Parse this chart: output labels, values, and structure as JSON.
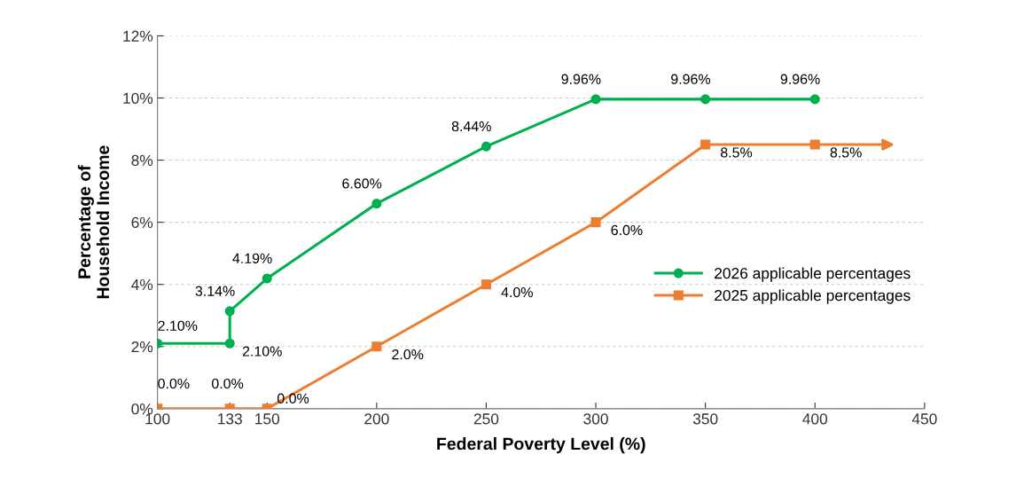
{
  "chart_data": {
    "type": "line",
    "xlabel": "Federal Poverty Level (%)",
    "ylabel": "Percentage of\nHousehold Income",
    "xlim": [
      100,
      450
    ],
    "xticks": [
      100,
      133,
      150,
      200,
      250,
      300,
      350,
      400,
      450
    ],
    "ylim": [
      0,
      12
    ],
    "yticks": [
      {
        "value": 0,
        "label": "0%"
      },
      {
        "value": 2,
        "label": "2%"
      },
      {
        "value": 4,
        "label": "4%"
      },
      {
        "value": 6,
        "label": "6%"
      },
      {
        "value": 8,
        "label": "8%"
      },
      {
        "value": 10,
        "label": "10%"
      },
      {
        "value": 12,
        "label": "12%"
      }
    ],
    "grid": "y",
    "legend": "right",
    "line_style": "solid",
    "series": [
      {
        "name": "2026 applicable percentages",
        "color": "#00b050",
        "marker": "circle",
        "x": [
          100,
          133,
          133,
          150,
          200,
          250,
          300,
          350,
          400
        ],
        "values": [
          2.1,
          2.1,
          3.14,
          4.19,
          6.6,
          8.44,
          9.96,
          9.96,
          9.96
        ],
        "value_labels": [
          "2.10%",
          "2.10%",
          "3.14%",
          "4.19%",
          "6.60%",
          "8.44%",
          "9.96%",
          "9.96%",
          "9.96%"
        ]
      },
      {
        "name": "2025 applicable percentages",
        "color": "#ed7d31",
        "marker": "square",
        "x": [
          100,
          133,
          150,
          200,
          250,
          300,
          350,
          400
        ],
        "values": [
          0,
          0,
          0,
          2.0,
          4.0,
          6.0,
          8.5,
          8.5
        ],
        "value_labels": [
          "0.0%",
          "0.0%",
          "0.0%",
          "2.0%",
          "4.0%",
          "6.0%",
          "8.5%",
          "8.5%"
        ]
      }
    ]
  }
}
